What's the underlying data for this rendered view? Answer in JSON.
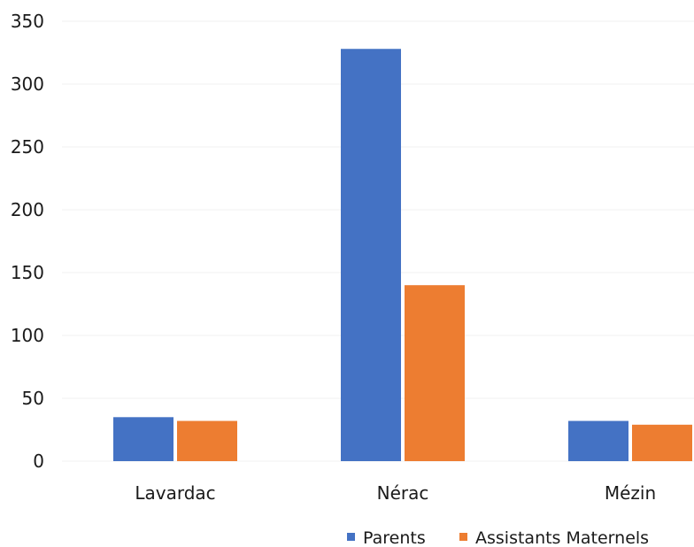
{
  "chart_data": {
    "type": "bar",
    "categories": [
      "Lavardac",
      "Nérac",
      "Mézin"
    ],
    "series": [
      {
        "name": "Parents",
        "values": [
          35,
          328,
          32
        ],
        "color": "#4472c4"
      },
      {
        "name": "Assistants Maternels",
        "values": [
          32,
          140,
          29
        ],
        "color": "#ed7d31"
      }
    ],
    "ylim": [
      0,
      350
    ],
    "yticks": [
      "0",
      "50",
      "100",
      "150",
      "200",
      "250",
      "300",
      "350"
    ],
    "grid": true,
    "legend_position": "bottom-right"
  }
}
